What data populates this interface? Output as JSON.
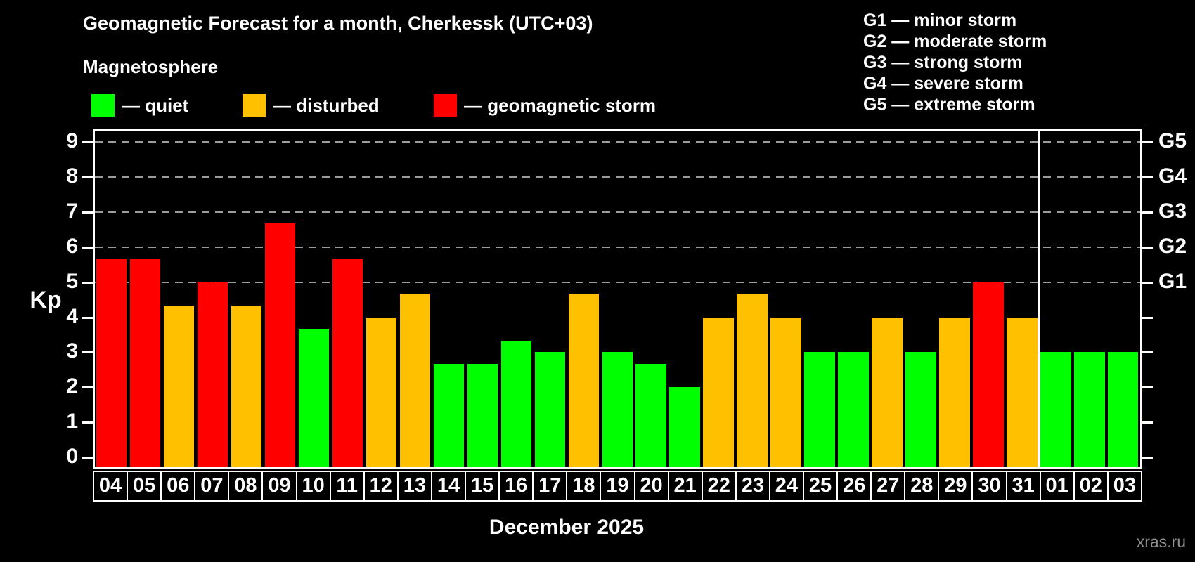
{
  "header": {
    "title": "Geomagnetic Forecast for a month, Cherkessk (UTC+03)",
    "subtitle": "Magnetosphere"
  },
  "legend": {
    "items": [
      {
        "level": "quiet",
        "label": "— quiet"
      },
      {
        "level": "disturbed",
        "label": "— disturbed"
      },
      {
        "level": "storm",
        "label": "— geomagnetic storm"
      }
    ]
  },
  "g_legend": {
    "lines": [
      "G1 — minor storm",
      "G2 — moderate storm",
      "G3 — strong storm",
      "G4 — severe storm",
      "G5 — extreme storm"
    ]
  },
  "chart_data": {
    "type": "bar",
    "title": "Geomagnetic Forecast for a month, Cherkessk (UTC+03)",
    "subtitle": "Magnetosphere",
    "ylabel": "Kp",
    "xlabel": "December 2025",
    "ylim": [
      0,
      9
    ],
    "grid": "dashed horizontal at Kp 5-9",
    "legend_position": "top",
    "y_ticks": [
      0,
      1,
      2,
      3,
      4,
      5,
      6,
      7,
      8,
      9
    ],
    "gridlines_at_kp": [
      5,
      6,
      7,
      8,
      9
    ],
    "right_axis_ticks": [
      {
        "kp": 5,
        "label": "G1"
      },
      {
        "kp": 6,
        "label": "G2"
      },
      {
        "kp": 7,
        "label": "G3"
      },
      {
        "kp": 8,
        "label": "G4"
      },
      {
        "kp": 9,
        "label": "G5"
      }
    ],
    "categories": [
      "04",
      "05",
      "06",
      "07",
      "08",
      "09",
      "10",
      "11",
      "12",
      "13",
      "14",
      "15",
      "16",
      "17",
      "18",
      "19",
      "20",
      "21",
      "22",
      "23",
      "24",
      "25",
      "26",
      "27",
      "28",
      "29",
      "30",
      "31",
      "01",
      "02",
      "03"
    ],
    "values": [
      5.67,
      5.67,
      4.33,
      5.0,
      4.33,
      6.67,
      3.67,
      5.67,
      4.0,
      4.67,
      2.67,
      2.67,
      3.33,
      3.0,
      4.67,
      3.0,
      2.67,
      2.0,
      4.0,
      4.67,
      4.0,
      3.0,
      3.0,
      4.0,
      3.0,
      4.0,
      5.0,
      4.0,
      3.0,
      3.0,
      3.0
    ],
    "levels": [
      "storm",
      "storm",
      "disturbed",
      "storm",
      "disturbed",
      "storm",
      "quiet",
      "storm",
      "disturbed",
      "disturbed",
      "quiet",
      "quiet",
      "quiet",
      "quiet",
      "disturbed",
      "quiet",
      "quiet",
      "quiet",
      "disturbed",
      "disturbed",
      "disturbed",
      "quiet",
      "quiet",
      "disturbed",
      "quiet",
      "disturbed",
      "storm",
      "disturbed",
      "quiet",
      "quiet",
      "quiet"
    ],
    "month_boundary_after": "31",
    "month_separator_after_index": 27,
    "colors": {
      "quiet": "#00ff00",
      "disturbed": "#ffc000",
      "storm": "#ff0000",
      "axis": "#ffffff",
      "gridline": "#9c9c9c",
      "background": "#000000"
    }
  },
  "footer": {
    "watermark": "xras.ru"
  }
}
